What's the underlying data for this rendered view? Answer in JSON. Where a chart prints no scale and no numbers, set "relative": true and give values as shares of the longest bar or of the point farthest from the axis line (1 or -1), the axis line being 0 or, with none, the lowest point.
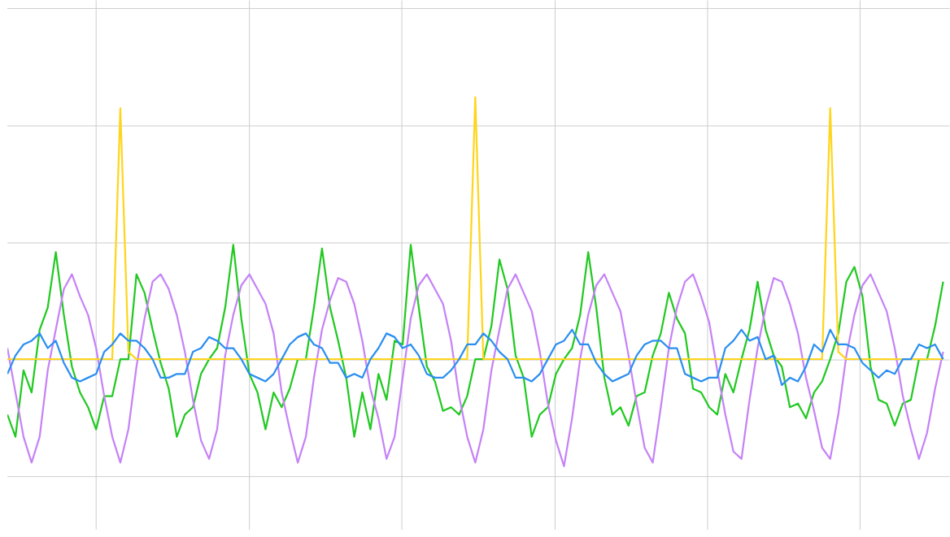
{
  "chart_data": {
    "type": "line",
    "relative": true,
    "grid": true,
    "categories": [
      null,
      null,
      null,
      null,
      null,
      null,
      null,
      null,
      null,
      null,
      null,
      null,
      null,
      null,
      null,
      null,
      null,
      null,
      null,
      null,
      null,
      null,
      null,
      null,
      null,
      null,
      null,
      null,
      null,
      null,
      null,
      null,
      null,
      null,
      null,
      null,
      null,
      null,
      null,
      null,
      null,
      null,
      null,
      null,
      null,
      null,
      null,
      null,
      null,
      null,
      null,
      null,
      null,
      null,
      null,
      null,
      null,
      null,
      null,
      null,
      null,
      null,
      null,
      null,
      null,
      null,
      null,
      null,
      null,
      null,
      null,
      null,
      null,
      null,
      null,
      null,
      null,
      null,
      null,
      null,
      null,
      null,
      null,
      null,
      null,
      null,
      null,
      null,
      null,
      null,
      null,
      null,
      null,
      null,
      null,
      null,
      null,
      null,
      null,
      null,
      null,
      null,
      null,
      null,
      null,
      null,
      null,
      null,
      null,
      null,
      null,
      null,
      null,
      null,
      null,
      null,
      null
    ],
    "series": [
      {
        "color": "#22c922",
        "values": [
          0.14,
          0.08,
          0.26,
          0.2,
          0.37,
          0.43,
          0.58,
          0.41,
          0.27,
          0.2,
          0.16,
          0.1,
          0.19,
          0.19,
          0.29,
          0.29,
          0.52,
          0.47,
          0.37,
          0.28,
          0.21,
          0.08,
          0.14,
          0.16,
          0.25,
          0.29,
          0.32,
          0.43,
          0.6,
          0.4,
          0.25,
          0.2,
          0.1,
          0.2,
          0.16,
          0.21,
          0.29,
          0.29,
          0.43,
          0.59,
          0.43,
          0.34,
          0.24,
          0.08,
          0.2,
          0.1,
          0.25,
          0.18,
          0.34,
          0.33,
          0.6,
          0.43,
          0.27,
          0.23,
          0.15,
          0.16,
          0.14,
          0.19,
          0.29,
          0.29,
          0.38,
          0.56,
          0.48,
          0.3,
          0.24,
          0.08,
          0.14,
          0.16,
          0.25,
          0.29,
          0.32,
          0.41,
          0.58,
          0.43,
          0.24,
          0.14,
          0.16,
          0.11,
          0.19,
          0.2,
          0.3,
          0.36,
          0.47,
          0.4,
          0.36,
          0.21,
          0.2,
          0.16,
          0.14,
          0.25,
          0.2,
          0.29,
          0.37,
          0.5,
          0.37,
          0.3,
          0.27,
          0.16,
          0.17,
          0.13,
          0.2,
          0.23,
          0.29,
          0.36,
          0.5,
          0.54,
          0.46,
          0.27,
          0.18,
          0.17,
          0.11,
          0.17,
          0.18,
          0.29,
          0.29,
          0.38,
          0.5
        ]
      },
      {
        "color": "#c683f7",
        "values": [
          0.32,
          0.2,
          0.08,
          0.01,
          0.08,
          0.26,
          0.37,
          0.48,
          0.52,
          0.46,
          0.41,
          0.32,
          0.19,
          0.08,
          0.01,
          0.1,
          0.27,
          0.4,
          0.5,
          0.52,
          0.48,
          0.41,
          0.31,
          0.18,
          0.07,
          0.02,
          0.1,
          0.3,
          0.41,
          0.49,
          0.52,
          0.48,
          0.44,
          0.36,
          0.2,
          0.1,
          0.01,
          0.08,
          0.24,
          0.37,
          0.45,
          0.51,
          0.5,
          0.44,
          0.34,
          0.21,
          0.13,
          0.02,
          0.08,
          0.24,
          0.4,
          0.49,
          0.52,
          0.48,
          0.44,
          0.34,
          0.19,
          0.08,
          0.01,
          0.1,
          0.26,
          0.37,
          0.48,
          0.52,
          0.47,
          0.42,
          0.31,
          0.17,
          0.07,
          0.0,
          0.13,
          0.29,
          0.41,
          0.49,
          0.52,
          0.47,
          0.42,
          0.3,
          0.17,
          0.05,
          0.01,
          0.16,
          0.32,
          0.43,
          0.5,
          0.52,
          0.46,
          0.39,
          0.26,
          0.14,
          0.04,
          0.02,
          0.18,
          0.32,
          0.43,
          0.51,
          0.5,
          0.44,
          0.36,
          0.24,
          0.15,
          0.05,
          0.02,
          0.14,
          0.3,
          0.41,
          0.49,
          0.52,
          0.47,
          0.42,
          0.32,
          0.19,
          0.1,
          0.02,
          0.09,
          0.21,
          0.31
        ]
      },
      {
        "color": "#ffd51c",
        "values": [
          0.29,
          0.29,
          0.29,
          0.29,
          0.29,
          0.29,
          0.29,
          0.29,
          0.29,
          0.29,
          0.29,
          0.29,
          0.29,
          0.29,
          0.97,
          0.31,
          0.29,
          0.29,
          0.29,
          0.29,
          0.29,
          0.29,
          0.29,
          0.29,
          0.29,
          0.29,
          0.29,
          0.29,
          0.29,
          0.29,
          0.29,
          0.29,
          0.29,
          0.29,
          0.29,
          0.29,
          0.29,
          0.29,
          0.29,
          0.29,
          0.29,
          0.29,
          0.29,
          0.29,
          0.29,
          0.29,
          0.29,
          0.29,
          0.29,
          0.29,
          0.29,
          0.29,
          0.29,
          0.29,
          0.29,
          0.29,
          0.29,
          0.29,
          1.0,
          0.29,
          0.29,
          0.29,
          0.29,
          0.29,
          0.29,
          0.29,
          0.29,
          0.29,
          0.29,
          0.29,
          0.29,
          0.29,
          0.29,
          0.29,
          0.29,
          0.29,
          0.29,
          0.29,
          0.29,
          0.29,
          0.29,
          0.29,
          0.29,
          0.29,
          0.29,
          0.29,
          0.29,
          0.29,
          0.29,
          0.29,
          0.29,
          0.29,
          0.29,
          0.29,
          0.29,
          0.29,
          0.29,
          0.29,
          0.29,
          0.29,
          0.29,
          0.29,
          0.97,
          0.31,
          0.29,
          0.29,
          0.29,
          0.29,
          0.29,
          0.29,
          0.29,
          0.29,
          0.29,
          0.29,
          0.29,
          0.29,
          0.29
        ]
      },
      {
        "color": "#2b8ff0",
        "values": [
          0.25,
          0.3,
          0.33,
          0.34,
          0.36,
          0.32,
          0.34,
          0.28,
          0.24,
          0.23,
          0.24,
          0.25,
          0.31,
          0.33,
          0.36,
          0.34,
          0.34,
          0.32,
          0.29,
          0.24,
          0.24,
          0.25,
          0.25,
          0.31,
          0.32,
          0.35,
          0.34,
          0.32,
          0.32,
          0.29,
          0.25,
          0.24,
          0.23,
          0.25,
          0.29,
          0.33,
          0.35,
          0.36,
          0.33,
          0.32,
          0.28,
          0.28,
          0.24,
          0.25,
          0.24,
          0.29,
          0.32,
          0.36,
          0.35,
          0.32,
          0.33,
          0.3,
          0.25,
          0.24,
          0.24,
          0.26,
          0.29,
          0.33,
          0.33,
          0.36,
          0.34,
          0.31,
          0.29,
          0.24,
          0.24,
          0.23,
          0.25,
          0.29,
          0.33,
          0.34,
          0.37,
          0.33,
          0.33,
          0.28,
          0.25,
          0.23,
          0.24,
          0.25,
          0.3,
          0.33,
          0.34,
          0.34,
          0.32,
          0.32,
          0.25,
          0.24,
          0.23,
          0.24,
          0.24,
          0.32,
          0.34,
          0.37,
          0.34,
          0.35,
          0.29,
          0.3,
          0.22,
          0.24,
          0.23,
          0.27,
          0.33,
          0.31,
          0.37,
          0.33,
          0.33,
          0.32,
          0.28,
          0.26,
          0.24,
          0.26,
          0.25,
          0.29,
          0.29,
          0.33,
          0.32,
          0.33,
          0.29
        ]
      }
    ]
  }
}
